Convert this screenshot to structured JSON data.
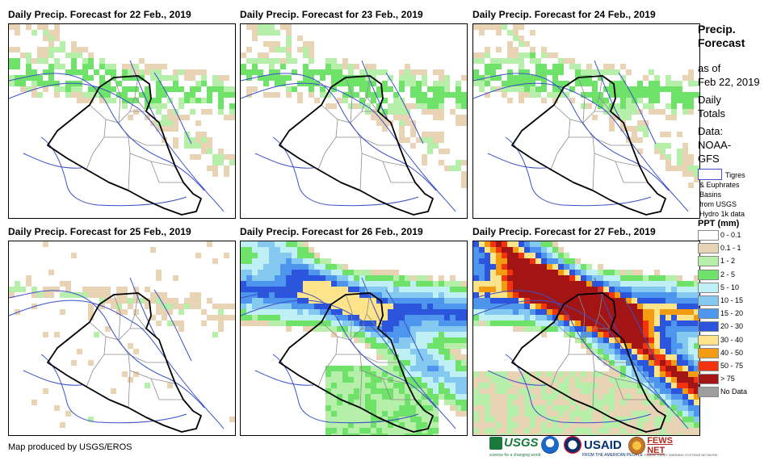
{
  "panels": [
    {
      "title": "Daily Precip. Forecast for 22 Feb., 2019",
      "intensity": 1,
      "max_class": "2 - 5"
    },
    {
      "title": "Daily Precip. Forecast for 23 Feb., 2019",
      "intensity": 1,
      "max_class": "2 - 5"
    },
    {
      "title": "Daily Precip. Forecast for 24 Feb., 2019",
      "intensity": 1,
      "max_class": "2 - 5"
    },
    {
      "title": "Daily Precip. Forecast for 25 Feb., 2019",
      "intensity": 0,
      "max_class": "1 - 2"
    },
    {
      "title": "Daily Precip. Forecast for 26 Feb., 2019",
      "intensity": 2,
      "max_class": "30 - 40"
    },
    {
      "title": "Daily Precip. Forecast for 27 Feb., 2019",
      "intensity": 3,
      "max_class": "> 75"
    }
  ],
  "sidebar": {
    "title": [
      "Precip.",
      "Forecast"
    ],
    "as_of": [
      "as of",
      "Feb 22, 2019"
    ],
    "totals": [
      "Daily",
      "Totals"
    ],
    "data_source": [
      "Data:",
      "NOAA-",
      "GFS"
    ],
    "basin_note": [
      "Tigres",
      "& Euphrates",
      "Basins",
      "from USGS",
      "Hydro 1k data"
    ]
  },
  "legend": {
    "title": "PPT (mm)",
    "classes": [
      {
        "label": "0 - 0.1",
        "color": "#ffffff"
      },
      {
        "label": "0.1 - 1",
        "color": "#e8d3b4"
      },
      {
        "label": "1 - 2",
        "color": "#b6efaa"
      },
      {
        "label": "2 - 5",
        "color": "#6fe26a"
      },
      {
        "label": "5 - 10",
        "color": "#bff0f5"
      },
      {
        "label": "10 - 15",
        "color": "#86c9f0"
      },
      {
        "label": "15 - 20",
        "color": "#4e95ee"
      },
      {
        "label": "20 - 30",
        "color": "#2a55dc"
      },
      {
        "label": "30 - 40",
        "color": "#fde38a"
      },
      {
        "label": "40 - 50",
        "color": "#f39c12"
      },
      {
        "label": "50 - 75",
        "color": "#f2330d"
      },
      {
        "label": "> 75",
        "color": "#a31515"
      },
      {
        "label": "No Data",
        "color": "#9e9e9e"
      }
    ]
  },
  "footer": {
    "credit": "Map produced by USGS/EROS",
    "logos": {
      "usgs": "USGS",
      "usgs_tag": "science for a changing world",
      "usaid": "USAID",
      "usaid_tag": "FROM THE AMERICAN PEOPLE",
      "fews": "FEWS NET",
      "fews_tag": "FAMINE EARLY WARNING SYSTEMS NETWORK"
    }
  },
  "colors": {
    "border_country": "#000000",
    "border_province": "#8c8c8c",
    "rivers": "#3a4fc8"
  }
}
